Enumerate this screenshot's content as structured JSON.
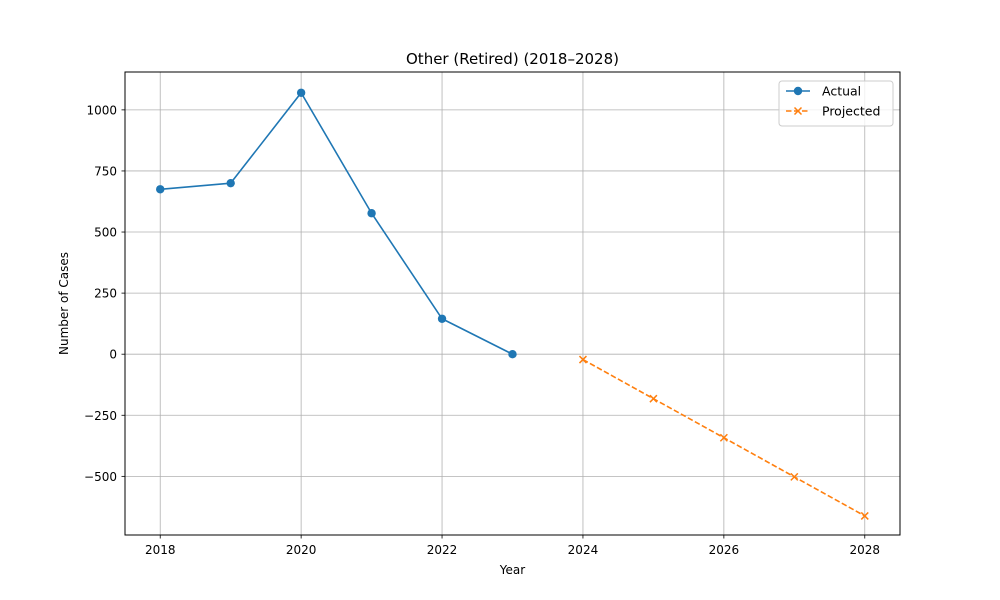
{
  "chart_data": {
    "type": "line",
    "title": "Other (Retired) (2018–2028)",
    "xlabel": "Year",
    "ylabel": "Number of Cases",
    "xlim": [
      2017.5,
      2028.5
    ],
    "ylim": [
      -740,
      1155
    ],
    "x_ticks": [
      2018,
      2020,
      2022,
      2024,
      2026,
      2028
    ],
    "y_ticks": [
      -500,
      -250,
      0,
      250,
      500,
      750,
      1000
    ],
    "y_tick_labels": [
      "−500",
      "−250",
      "0",
      "250",
      "500",
      "750",
      "1000"
    ],
    "grid": true,
    "legend_position": "top-right",
    "series": [
      {
        "name": "Actual",
        "color": "#1f77b4",
        "line_style": "solid",
        "marker": "circle",
        "x": [
          2018,
          2019,
          2020,
          2021,
          2022,
          2023
        ],
        "y": [
          675,
          700,
          1070,
          577,
          145,
          0
        ]
      },
      {
        "name": "Projected",
        "color": "#ff7f0e",
        "line_style": "dashed",
        "marker": "x",
        "x": [
          2024,
          2025,
          2026,
          2027,
          2028
        ],
        "y": [
          -22,
          -182,
          -342,
          -502,
          -662
        ]
      }
    ]
  }
}
